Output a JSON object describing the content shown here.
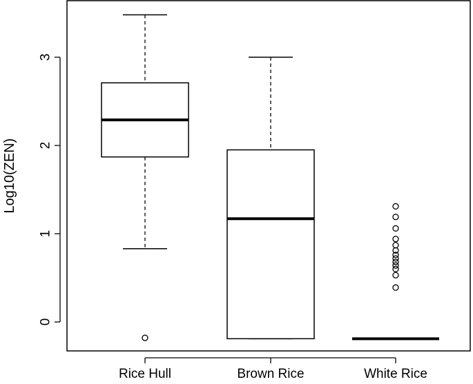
{
  "chart_data": {
    "type": "boxplot",
    "ylabel": "Log10(ZEN)",
    "xlabel": "",
    "ylim": [
      -0.33,
      3.55
    ],
    "yticks": [
      0,
      1,
      2,
      3
    ],
    "grid": false,
    "categories": [
      "Rice Hull",
      "Brown Rice",
      "White Rice"
    ],
    "boxes": [
      {
        "category": "Rice Hull",
        "whisker_low": 0.83,
        "q1": 1.87,
        "median": 2.29,
        "q3": 2.71,
        "whisker_high": 3.48,
        "outliers": [
          -0.18
        ]
      },
      {
        "category": "Brown Rice",
        "whisker_low": -0.19,
        "q1": -0.19,
        "median": 1.17,
        "q3": 1.95,
        "whisker_high": 3.0,
        "outliers": []
      },
      {
        "category": "White Rice",
        "whisker_low": -0.19,
        "q1": -0.19,
        "median": -0.19,
        "q3": -0.19,
        "whisker_high": -0.19,
        "outliers": [
          0.39,
          0.53,
          0.6,
          0.64,
          0.68,
          0.72,
          0.76,
          0.81,
          0.87,
          0.94,
          1.06,
          1.19,
          1.31
        ]
      }
    ]
  }
}
